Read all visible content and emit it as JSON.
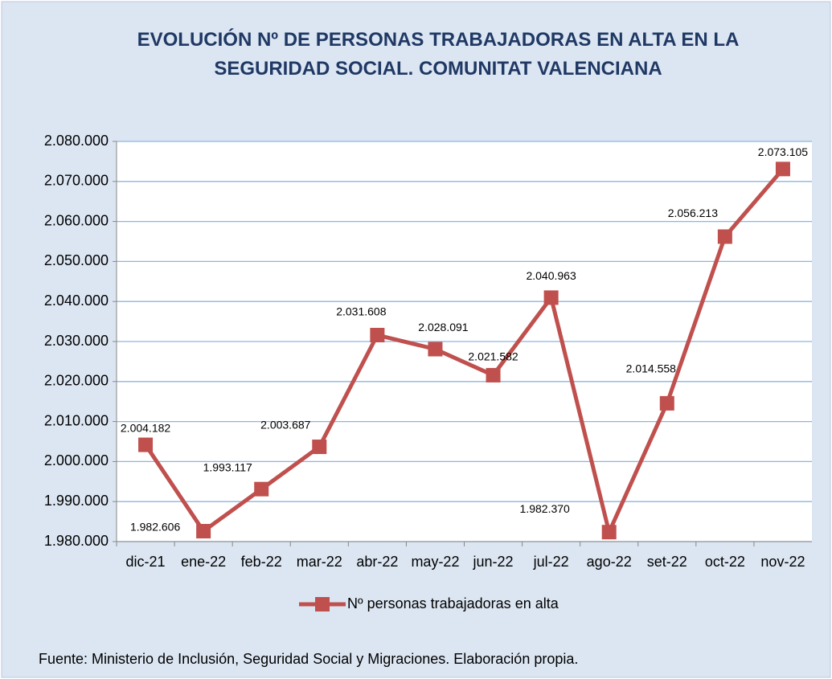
{
  "chart_data": {
    "type": "line",
    "title": "EVOLUCIÓN Nº DE PERSONAS TRABAJADORAS EN ALTA EN LA SEGURIDAD SOCIAL. COMUNITAT VALENCIANA",
    "categories": [
      "dic-21",
      "ene-22",
      "feb-22",
      "mar-22",
      "abr-22",
      "may-22",
      "jun-22",
      "jul-22",
      "ago-22",
      "set-22",
      "oct-22",
      "nov-22"
    ],
    "series": [
      {
        "name": "Nº personas trabajadoras en alta",
        "color": "#c0504d",
        "values": [
          2004182,
          1982606,
          1993117,
          2003687,
          2031608,
          2028091,
          2021582,
          2040963,
          1982370,
          2014558,
          2056213,
          2073105
        ],
        "value_labels": [
          "2.004.182",
          "1.982.606",
          "1.993.117",
          "2.003.687",
          "2.031.608",
          "2.028.091",
          "2.021.582",
          "2.040.963",
          "1.982.370",
          "2.014.558",
          "2.056.213",
          "2.073.105"
        ]
      }
    ],
    "ylim": [
      1980000,
      2080000
    ],
    "yticks": [
      {
        "value": 1980000,
        "label": "1.980.000"
      },
      {
        "value": 1990000,
        "label": "1.990.000"
      },
      {
        "value": 2000000,
        "label": "2.000.000"
      },
      {
        "value": 2010000,
        "label": "2.010.000"
      },
      {
        "value": 2020000,
        "label": "2.020.000"
      },
      {
        "value": 2030000,
        "label": "2.030.000"
      },
      {
        "value": 2040000,
        "label": "2.040.000"
      },
      {
        "value": 2050000,
        "label": "2.050.000"
      },
      {
        "value": 2060000,
        "label": "2.060.000"
      },
      {
        "value": 2070000,
        "label": "2.070.000"
      },
      {
        "value": 2080000,
        "label": "2.080.000"
      }
    ],
    "grid": true,
    "legend": "bottom",
    "source": "Fuente: Ministerio de Inclusión, Seguridad Social y Migraciones. Elaboración propia."
  }
}
